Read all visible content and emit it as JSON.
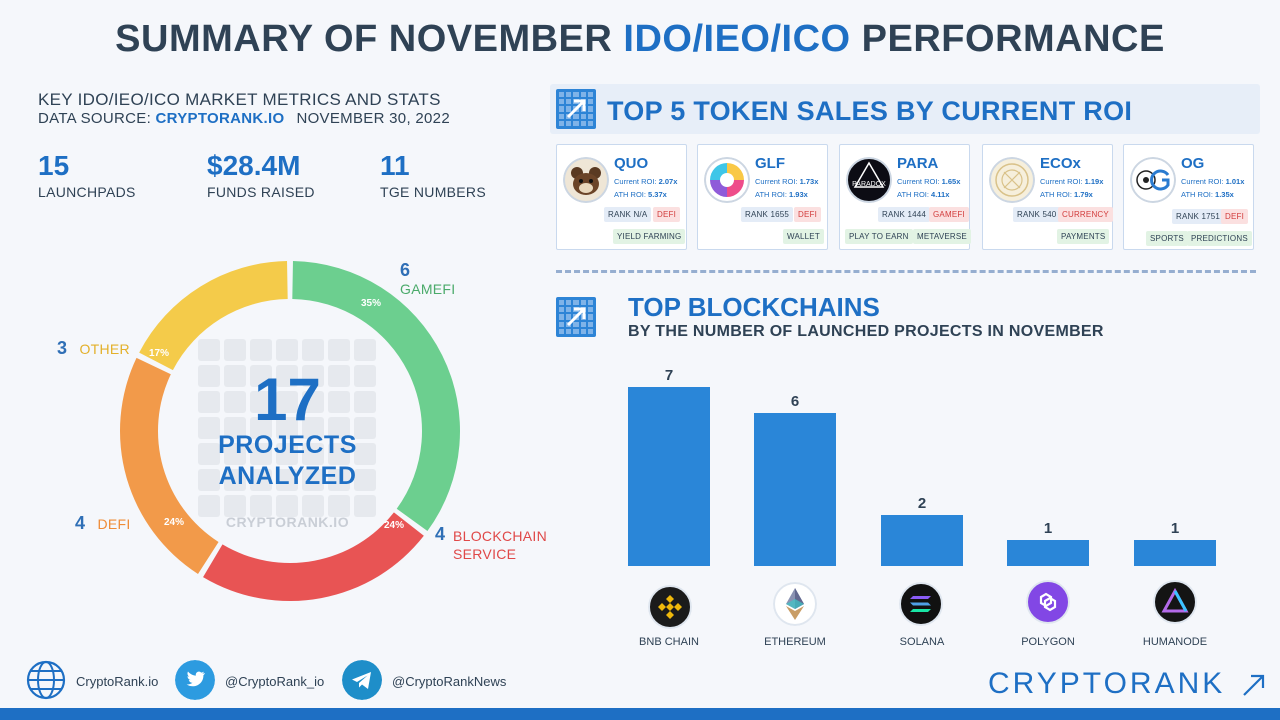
{
  "header": {
    "title_part1": "SUMMARY OF NOVEMBER ",
    "title_accent": "IDO/IEO/ICO",
    "title_part2": " PERFORMANCE"
  },
  "subheader": {
    "line1": "KEY IDO/IEO/ICO MARKET METRICS AND STATS",
    "source_prefix": "DATA SOURCE: ",
    "source": "CRYPTORANK.IO",
    "date": "NOVEMBER 30, 2022"
  },
  "metrics": [
    {
      "value": "15",
      "label": "LAUNCHPADS"
    },
    {
      "value": "$28.4M",
      "label": "FUNDS RAISED"
    },
    {
      "value": "11",
      "label": "TGE NUMBERS"
    }
  ],
  "donut": {
    "center_value": "17",
    "center_label_line1": "PROJECTS",
    "center_label_line2": "ANALYZED",
    "watermark": "CRYPTORANK.IO",
    "segments": [
      {
        "count": "6",
        "name": "GAMEFI",
        "pct": "35%",
        "color": "#6ccf8f"
      },
      {
        "count": "4",
        "name_line1": "BLOCKCHAIN",
        "name_line2": "SERVICE",
        "pct": "24%",
        "color": "#e85454"
      },
      {
        "count": "4",
        "name": "DEFI",
        "pct": "24%",
        "color": "#f29a4a"
      },
      {
        "count": "3",
        "name": "OTHER",
        "pct": "17%",
        "color": "#f4cb4a"
      }
    ]
  },
  "token_sales": {
    "title": "TOP 5 TOKEN SALES BY CURRENT ROI",
    "cards": [
      {
        "name": "QUO",
        "current_roi_label": "Current ROI: ",
        "current_roi": "2.07x",
        "ath_roi_label": "ATH ROI: ",
        "ath_roi": "5.37x",
        "rank": "RANK N/A",
        "tag1": "DEFI",
        "tag2": "YIELD FARMING"
      },
      {
        "name": "GLF",
        "current_roi_label": "Current ROI: ",
        "current_roi": "1.73x",
        "ath_roi_label": "ATH ROI: ",
        "ath_roi": "1.93x",
        "rank": "RANK 1655",
        "tag1": "DEFI",
        "tag2": "WALLET"
      },
      {
        "name": "PARA",
        "current_roi_label": "Current ROI: ",
        "current_roi": "1.65x",
        "ath_roi_label": "ATH ROI: ",
        "ath_roi": "4.11x",
        "rank": "RANK 1444",
        "tag1": "GAMEFI",
        "tag2": "PLAY TO EARN",
        "tag3": "METAVERSE",
        "logo_text": "PARADOX"
      },
      {
        "name": "ECOx",
        "current_roi_label": "Current ROI: ",
        "current_roi": "1.19x",
        "ath_roi_label": "ATH ROI: ",
        "ath_roi": "1.79x",
        "rank": "RANK 540",
        "tag1": "CURRENCY",
        "tag2": "PAYMENTS"
      },
      {
        "name": "OG",
        "current_roi_label": "Current ROI: ",
        "current_roi": "1.01x",
        "ath_roi_label": "ATH ROI: ",
        "ath_roi": "1.35x",
        "rank": "RANK 1751",
        "tag1": "DEFI",
        "tag2": "SPORTS",
        "tag3": "PREDICTIONS"
      }
    ]
  },
  "blockchains": {
    "title": "TOP BLOCKCHAINS",
    "subtitle": "BY THE NUMBER OF LAUNCHED PROJECTS IN NOVEMBER"
  },
  "chart_data": [
    {
      "type": "pie",
      "categories": [
        "GAMEFI",
        "BLOCKCHAIN SERVICE",
        "DEFI",
        "OTHER"
      ],
      "values": [
        6,
        4,
        4,
        3
      ],
      "percentages": [
        35,
        24,
        24,
        17
      ],
      "colors": [
        "#6ccf8f",
        "#e85454",
        "#f29a4a",
        "#f4cb4a"
      ]
    },
    {
      "type": "bar",
      "title": "TOP BLOCKCHAINS",
      "categories": [
        "BNB CHAIN",
        "ETHEREUM",
        "SOLANA",
        "POLYGON",
        "HUMANODE"
      ],
      "values": [
        7,
        6,
        2,
        1,
        1
      ],
      "ylim": [
        0,
        7
      ],
      "grid": false
    }
  ],
  "footer": {
    "website": "CryptoRank.io",
    "twitter": "@CryptoRank_io",
    "telegram": "@CryptoRankNews",
    "brand": "CRYPTORANK"
  }
}
